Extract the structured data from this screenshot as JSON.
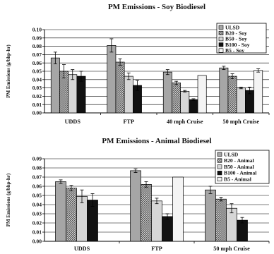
{
  "chart_data": [
    {
      "type": "bar",
      "title": "PM Emissions - Soy Biodiesel",
      "ylabel": "PM Emissions (g/bhp-hr)",
      "xlabel": "",
      "ylim": [
        0,
        0.1
      ],
      "yticks": [
        "0.00",
        "0.01",
        "0.02",
        "0.03",
        "0.04",
        "0.05",
        "0.06",
        "0.07",
        "0.08",
        "0.09",
        "0.10"
      ],
      "categories": [
        "UDDS",
        "FTP",
        "40 mph Cruise",
        "50 mph Cruise"
      ],
      "legend_position": "top-right",
      "series": [
        {
          "name": "ULSD",
          "color": "#a6a6a6",
          "pattern": "solid",
          "values": [
            0.066,
            0.081,
            0.049,
            0.054
          ],
          "errors": [
            0.007,
            0.008,
            0.003,
            0.002
          ]
        },
        {
          "name": "B20 - Soy",
          "color": "#6e6e6e",
          "pattern": "checker",
          "values": [
            0.05,
            0.061,
            0.036,
            0.044
          ],
          "errors": [
            0.008,
            0.004,
            0.002,
            0.003
          ]
        },
        {
          "name": "B50 - Soy",
          "color": "#d6d6d6",
          "pattern": "solid",
          "values": [
            0.046,
            0.044,
            0.026,
            0.03
          ],
          "errors": [
            0.006,
            0.004,
            0.001,
            0.001
          ]
        },
        {
          "name": "B100 - Soy",
          "color": "#111111",
          "pattern": "solid",
          "values": [
            0.044,
            0.033,
            0.016,
            0.027
          ],
          "errors": [
            0.006,
            0.006,
            0.001,
            0.004
          ]
        },
        {
          "name": "B5 - Soy",
          "color": "#f4f4f4",
          "pattern": "solid",
          "values": [
            null,
            null,
            0.045,
            0.051
          ],
          "errors": [
            null,
            null,
            0.0,
            0.002
          ]
        }
      ]
    },
    {
      "type": "bar",
      "title": "PM Emissions - Animal Biodiesel",
      "ylabel": "PM Emissions (g/bhp-hr)",
      "xlabel": "",
      "ylim": [
        0,
        0.09
      ],
      "yticks": [
        "0.00",
        "0.01",
        "0.02",
        "0.03",
        "0.04",
        "0.05",
        "0.06",
        "0.07",
        "0.08",
        "0.09"
      ],
      "categories": [
        "UDDS",
        "FTP",
        "50 mph Cruise"
      ],
      "legend_position": "top-right",
      "series": [
        {
          "name": "ULSD",
          "color": "#a6a6a6",
          "pattern": "solid",
          "values": [
            0.065,
            0.077,
            0.056
          ],
          "errors": [
            0.002,
            0.002,
            0.004
          ]
        },
        {
          "name": "B20 - Animal",
          "color": "#6e6e6e",
          "pattern": "checker",
          "values": [
            0.058,
            0.062,
            0.046
          ],
          "errors": [
            0.003,
            0.003,
            0.002
          ]
        },
        {
          "name": "B50 - Animal",
          "color": "#d6d6d6",
          "pattern": "solid",
          "values": [
            0.049,
            0.044,
            0.036
          ],
          "errors": [
            0.007,
            0.003,
            0.005
          ]
        },
        {
          "name": "B100 - Animal",
          "color": "#111111",
          "pattern": "solid",
          "values": [
            0.045,
            0.027,
            0.023
          ],
          "errors": [
            0.007,
            0.003,
            0.003
          ]
        },
        {
          "name": "B5 - Animal",
          "color": "#f4f4f4",
          "pattern": "solid",
          "values": [
            null,
            0.07,
            null
          ],
          "errors": [
            null,
            0.0,
            null
          ]
        }
      ]
    }
  ]
}
